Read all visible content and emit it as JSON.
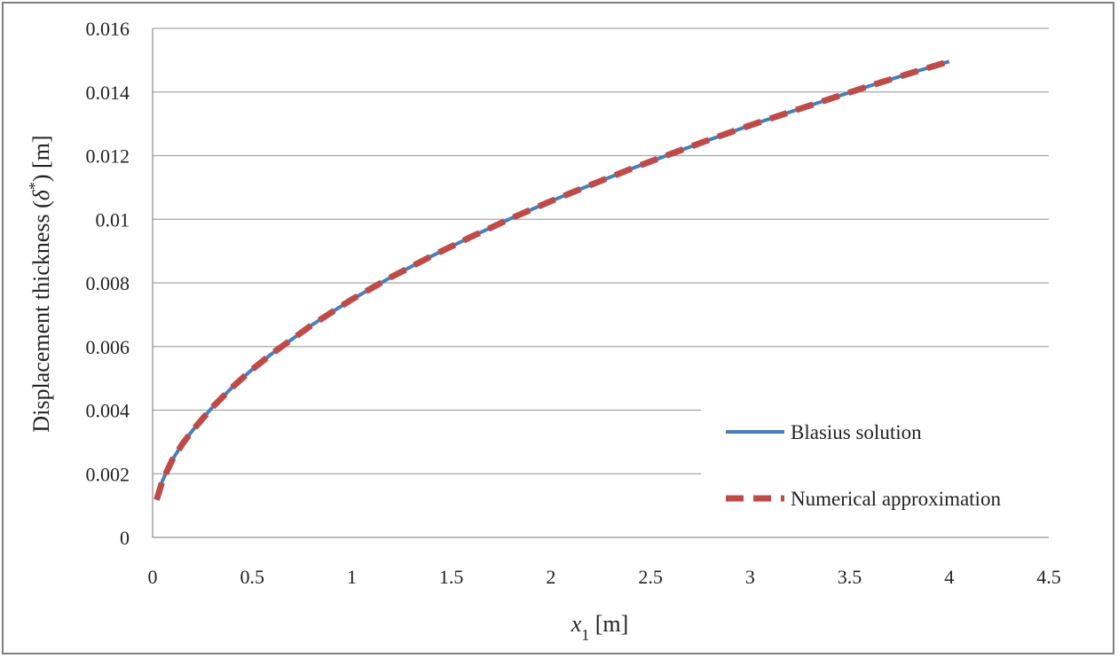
{
  "chart_data": {
    "type": "line",
    "title": "",
    "xlabel": "x1 [m]",
    "xlabel_var": "x",
    "xlabel_sub": "1",
    "xlabel_unit": " [m]",
    "ylabel": "Displacement thickness (δ*) [m]",
    "ylabel_pre": "Displacement thickness (",
    "ylabel_sym": "δ",
    "ylabel_sup": "*",
    "ylabel_post": ") [m]",
    "xlim": [
      0,
      4.5
    ],
    "ylim": [
      0,
      0.016
    ],
    "x_ticks": [
      "0",
      "0.5",
      "1",
      "1.5",
      "2",
      "2.5",
      "3",
      "3.5",
      "4",
      "4.5"
    ],
    "y_ticks": [
      "0",
      "0.002",
      "0.004",
      "0.006",
      "0.008",
      "0.01",
      "0.012",
      "0.014",
      "0.016"
    ],
    "grid": "horizontal",
    "legend_position": "bottom-right",
    "x": [
      0.02,
      0.05,
      0.1,
      0.15,
      0.2,
      0.3,
      0.4,
      0.5,
      0.6,
      0.8,
      1.0,
      1.2,
      1.4,
      1.6,
      1.8,
      2.0,
      2.2,
      2.4,
      2.6,
      2.8,
      3.0,
      3.2,
      3.4,
      3.6,
      3.8,
      4.0
    ],
    "series": [
      {
        "name": "Blasius solution",
        "color": "#4a7ebb",
        "style": "solid",
        "values": [
          0.00118,
          0.00179,
          0.00245,
          0.00294,
          0.00336,
          0.00409,
          0.00472,
          0.00528,
          0.00578,
          0.00668,
          0.00748,
          0.00819,
          0.00884,
          0.00945,
          0.01003,
          0.01057,
          0.01108,
          0.01158,
          0.01205,
          0.01251,
          0.01295,
          0.01337,
          0.01378,
          0.01419,
          0.01458,
          0.01496
        ]
      },
      {
        "name": "Numerical approximation",
        "color": "#be4b48",
        "style": "dashed",
        "values": [
          0.00118,
          0.00179,
          0.00245,
          0.00294,
          0.00336,
          0.00409,
          0.00472,
          0.00528,
          0.00578,
          0.00668,
          0.00748,
          0.00819,
          0.00884,
          0.00945,
          0.01003,
          0.01057,
          0.01108,
          0.01158,
          0.01205,
          0.01251,
          0.01295,
          0.01337,
          0.01378,
          0.01419,
          0.01458,
          0.01496
        ]
      }
    ]
  }
}
